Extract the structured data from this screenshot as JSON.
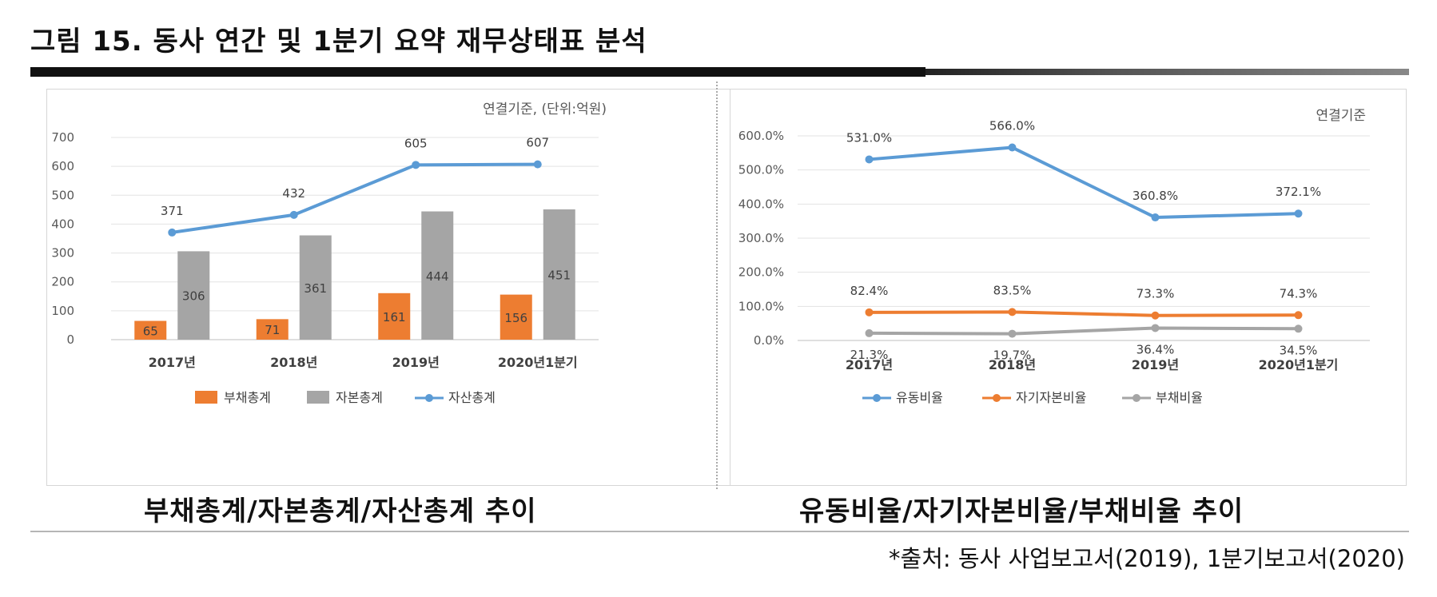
{
  "title": "그림 15. 동사 연간 및 1분기 요약 재무상태표 분석",
  "source": "*출처: 동사 사업보고서(2019), 1분기보고서(2020)",
  "colors": {
    "orange": "#ED7D31",
    "gray": "#A5A5A5",
    "blue": "#5B9BD5"
  },
  "chart_data": [
    {
      "type": "bar",
      "title": "부채총계/자본총계/자산총계 추이",
      "note": "연결기준, (단위:억원)",
      "categories": [
        "2017년",
        "2018년",
        "2019년",
        "2020년1분기"
      ],
      "ylim": [
        0,
        700
      ],
      "yticks": [
        "0",
        "100",
        "200",
        "300",
        "400",
        "500",
        "600",
        "700"
      ],
      "grid": true,
      "legend_position": "bottom",
      "series": [
        {
          "name": "부채총계",
          "kind": "bar",
          "color": "#ED7D31",
          "values": [
            65,
            71,
            161,
            156
          ],
          "labels": [
            "65",
            "71",
            "161",
            "156"
          ]
        },
        {
          "name": "자본총계",
          "kind": "bar",
          "color": "#A5A5A5",
          "values": [
            306,
            361,
            444,
            451
          ],
          "labels": [
            "306",
            "361",
            "444",
            "451"
          ]
        },
        {
          "name": "자산총계",
          "kind": "line",
          "color": "#5B9BD5",
          "values": [
            371,
            432,
            605,
            607
          ],
          "labels": [
            "371",
            "432",
            "605",
            "607"
          ]
        }
      ]
    },
    {
      "type": "line",
      "title": "유동비율/자기자본비율/부채비율 추이",
      "note": "연결기준",
      "categories": [
        "2017년",
        "2018년",
        "2019년",
        "2020년1분기"
      ],
      "ylim": [
        0,
        600
      ],
      "yticks": [
        "0.0%",
        "100.0%",
        "200.0%",
        "300.0%",
        "400.0%",
        "500.0%",
        "600.0%"
      ],
      "grid": true,
      "legend_position": "bottom",
      "series": [
        {
          "name": "유동비율",
          "color": "#5B9BD5",
          "values": [
            531.0,
            566.0,
            360.8,
            372.1
          ],
          "labels": [
            "531.0%",
            "566.0%",
            "360.8%",
            "372.1%"
          ]
        },
        {
          "name": "자기자본비율",
          "color": "#ED7D31",
          "values": [
            82.4,
            83.5,
            73.3,
            74.3
          ],
          "labels": [
            "82.4%",
            "83.5%",
            "73.3%",
            "74.3%"
          ]
        },
        {
          "name": "부채비율",
          "color": "#A5A5A5",
          "values": [
            21.3,
            19.7,
            36.4,
            34.5
          ],
          "labels": [
            "21.3%",
            "19.7%",
            "36.4%",
            "34.5%"
          ]
        }
      ]
    }
  ]
}
